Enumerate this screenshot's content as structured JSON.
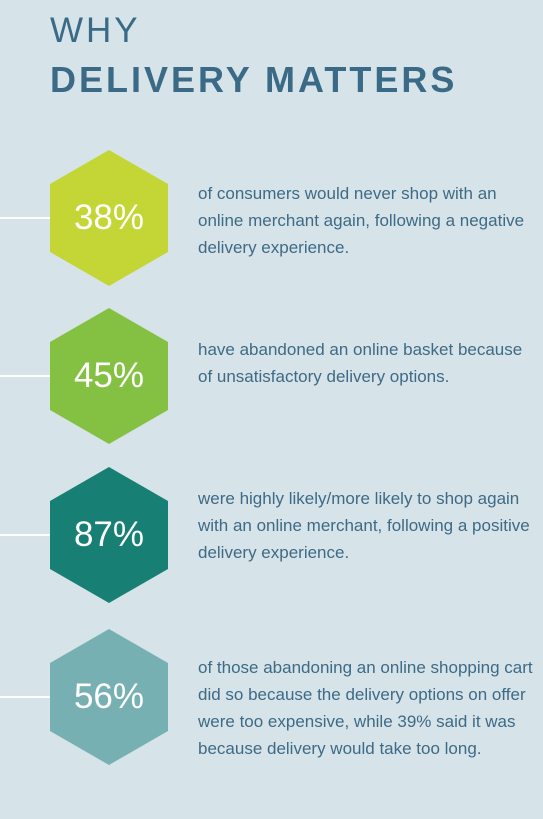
{
  "heading": {
    "line1": "WHY",
    "line2": "DELIVERY MATTERS"
  },
  "stats": [
    {
      "value": "38%",
      "color": "#c3d635",
      "text": "of consumers would never shop with an online merchant again, following a negative delivery experience."
    },
    {
      "value": "45%",
      "color": "#84c042",
      "text": "have abandoned an online basket because of unsatisfactory delivery options."
    },
    {
      "value": "87%",
      "color": "#177f74",
      "text": "were highly likely/more likely to shop again with an online merchant, following a positive delivery experience."
    },
    {
      "value": "56%",
      "color": "#77b0b3",
      "text": "of those abandoning an online shopping cart did so because the delivery options on offer were too expensive, while 39% said it was because delivery would take too long."
    }
  ]
}
